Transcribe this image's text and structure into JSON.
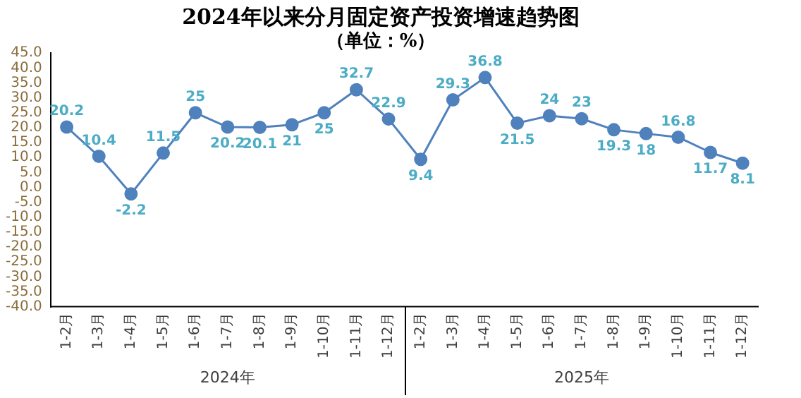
{
  "chart_data": {
    "type": "line",
    "title": "2024年以来分月固定资产投资增速趋势图",
    "subtitle": "（单位：%）",
    "categories": [
      "1-2月",
      "1-3月",
      "1-4月",
      "1-5月",
      "1-6月",
      "1-7月",
      "1-8月",
      "1-9月",
      "1-10月",
      "1-11月",
      "1-12月",
      "1-2月",
      "1-3月",
      "1-4月",
      "1-5月",
      "1-6月",
      "1-7月",
      "1-8月",
      "1-9月",
      "1-10月",
      "1-11月",
      "1-12月"
    ],
    "series": [
      {
        "color": "#4f81bd",
        "values": [
          20.2,
          10.4,
          -2.2,
          11.5,
          25,
          20.2,
          20.1,
          21,
          25,
          32.7,
          22.9,
          9.4,
          29.3,
          36.8,
          21.5,
          24,
          23,
          19.3,
          18,
          16.8,
          11.7,
          8.1
        ]
      }
    ],
    "annotations": [
      "2024年",
      "2025年"
    ],
    "ylim": [
      -40,
      45
    ],
    "yticks": [
      {
        "value": -40,
        "label": "-40.0"
      },
      {
        "value": -35,
        "label": "-35.0"
      },
      {
        "value": -30,
        "label": "-30.0"
      },
      {
        "value": -25,
        "label": "-25.0"
      },
      {
        "value": -20,
        "label": "-20.0"
      },
      {
        "value": -15,
        "label": "-15.0"
      },
      {
        "value": -10,
        "label": "-10.0"
      },
      {
        "value": -5,
        "label": "-5.0"
      },
      {
        "value": 0,
        "label": "0.0"
      },
      {
        "value": 5,
        "label": "5.0"
      },
      {
        "value": 10,
        "label": "10.0"
      },
      {
        "value": 15,
        "label": "15.0"
      },
      {
        "value": 20,
        "label": "20.0"
      },
      {
        "value": 25,
        "label": "25.0"
      },
      {
        "value": 30,
        "label": "30.0"
      },
      {
        "value": 35,
        "label": "35.0"
      },
      {
        "value": 40,
        "label": "40.0"
      },
      {
        "value": 45,
        "label": "45.0"
      }
    ],
    "grid": false,
    "legend": false,
    "marker": "circle",
    "line_style": "solid",
    "data_labels": true
  }
}
